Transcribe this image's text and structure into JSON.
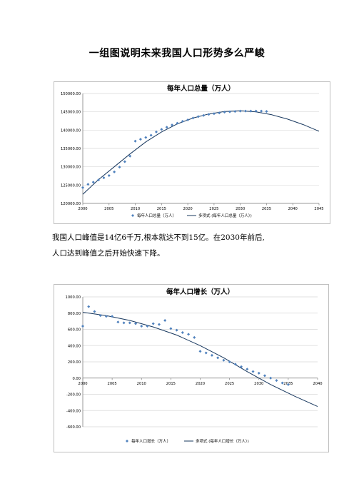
{
  "document": {
    "title": "一组图说明未来我国人口形势多么严峻",
    "paragraph_lines": [
      "我国人口峰值是14亿6千万,根本就达不到15亿。在2030年前后,",
      "人口达到峰值之后开始快速下降。"
    ]
  },
  "colors": {
    "marker": "#4f81bd",
    "trend": "#17375e",
    "grid": "#d9d9d9",
    "axis": "#7f7f7f"
  },
  "chart_data": [
    {
      "type": "scatter",
      "title": "每年人口总量（万人）",
      "legend": {
        "position": "bottom",
        "marker_label": "每年人口总量（万人）",
        "trend_label": "多项式 (每年人口总量（万人）)"
      },
      "xlim": [
        2000,
        2045
      ],
      "x_ticks": [
        2000,
        2005,
        2010,
        2015,
        2020,
        2025,
        2030,
        2035,
        2040,
        2045
      ],
      "ylim": [
        120000,
        150000
      ],
      "y_ticks": [
        "120000.00",
        "125000.00",
        "130000.00",
        "135000.00",
        "140000.00",
        "145000.00",
        "150000.00"
      ],
      "grid": true,
      "series": [
        {
          "kind": "points",
          "x": [
            2000,
            2001,
            2002,
            2003,
            2004,
            2005,
            2006,
            2007,
            2008,
            2009,
            2010,
            2011,
            2012,
            2013,
            2014,
            2015,
            2016,
            2017,
            2018,
            2019,
            2020,
            2021,
            2022,
            2023,
            2024,
            2025,
            2026,
            2027,
            2028,
            2029,
            2030,
            2031,
            2032,
            2033,
            2034,
            2035
          ],
          "y": [
            124300,
            125200,
            125800,
            126400,
            127000,
            127600,
            128600,
            129900,
            131400,
            132900,
            137000,
            137500,
            138000,
            138600,
            139500,
            140200,
            140800,
            141400,
            141900,
            142400,
            142800,
            143300,
            143700,
            144000,
            144300,
            144500,
            144700,
            144900,
            145000,
            145100,
            145200,
            145200,
            145200,
            145200,
            145200,
            145100
          ]
        },
        {
          "kind": "trend",
          "x": [
            2000,
            2003,
            2006,
            2009,
            2012,
            2015,
            2018,
            2021,
            2024,
            2027,
            2030,
            2033,
            2036,
            2039,
            2042,
            2045
          ],
          "y": [
            122500,
            126500,
            130000,
            133500,
            136800,
            139500,
            141700,
            143300,
            144400,
            145100,
            145300,
            145000,
            144200,
            143000,
            141500,
            139700
          ]
        }
      ]
    },
    {
      "type": "scatter",
      "title": "每年人口增长（万人）",
      "legend": {
        "position": "bottom",
        "marker_label": "每年人口增长（万人）",
        "trend_label": "多项式 (每年人口增长（万人）)"
      },
      "xlim": [
        2000,
        2040
      ],
      "x_ticks": [
        2000,
        2005,
        2010,
        2015,
        2020,
        2025,
        2030,
        2035,
        2040
      ],
      "ylim": [
        -600,
        1000
      ],
      "y_ticks": [
        "-600.00",
        "-400.00",
        "-200.00",
        "0.00",
        "200.00",
        "400.00",
        "600.00",
        "800.00",
        "1000.00"
      ],
      "grid": true,
      "series": [
        {
          "kind": "points",
          "x": [
            2000,
            2001,
            2002,
            2003,
            2004,
            2005,
            2006,
            2007,
            2008,
            2009,
            2010,
            2011,
            2012,
            2013,
            2014,
            2015,
            2016,
            2017,
            2018,
            2019,
            2020,
            2021,
            2022,
            2023,
            2024,
            2025,
            2026,
            2027,
            2028,
            2029,
            2030,
            2031,
            2032,
            2033,
            2034,
            2035
          ],
          "y": [
            640,
            880,
            820,
            770,
            760,
            760,
            690,
            680,
            680,
            670,
            640,
            640,
            670,
            660,
            710,
            610,
            590,
            560,
            540,
            500,
            330,
            310,
            280,
            250,
            220,
            200,
            170,
            140,
            110,
            80,
            60,
            30,
            0,
            -30,
            -60,
            -80
          ]
        },
        {
          "kind": "trend",
          "x": [
            2000,
            2004,
            2008,
            2012,
            2016,
            2020,
            2024,
            2028,
            2032,
            2036,
            2040
          ],
          "y": [
            810,
            770,
            710,
            630,
            530,
            400,
            250,
            80,
            -80,
            -220,
            -350
          ]
        }
      ]
    }
  ]
}
